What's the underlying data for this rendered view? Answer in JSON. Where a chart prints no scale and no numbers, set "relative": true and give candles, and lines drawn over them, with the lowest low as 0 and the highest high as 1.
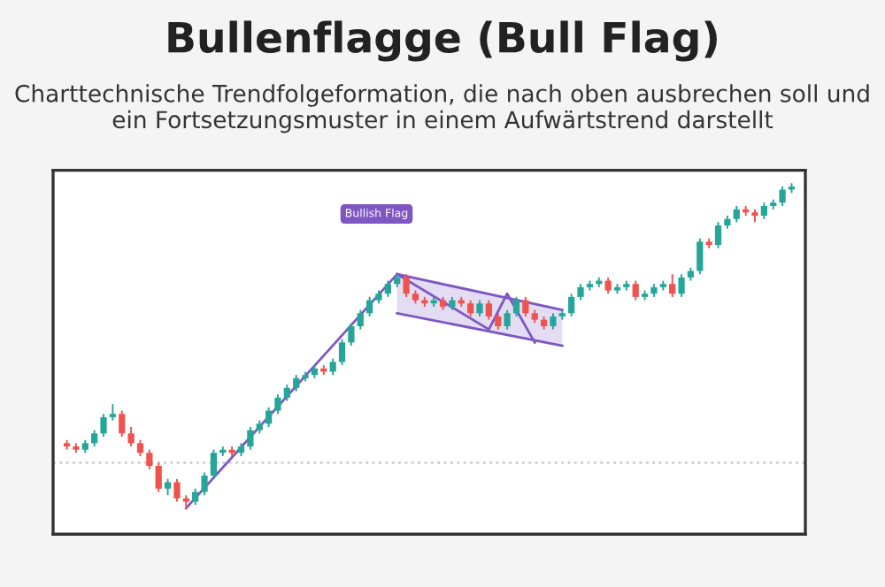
{
  "chart_data": {
    "type": "candlestick",
    "title": "Bullenflagge (Bull Flag)",
    "subtitle": "Charttechnische Trendfolgeformation, die nach oben ausbrechen soll und ein Fortsetzungsmuster in einem Aufwärtstrend darstellt",
    "relative": true,
    "categories": [
      null,
      null,
      null,
      null,
      null,
      null,
      null,
      null,
      null,
      null,
      null,
      null,
      null,
      null,
      null,
      null,
      null,
      null,
      null,
      null,
      null,
      null,
      null,
      null,
      null,
      null,
      null,
      null,
      null,
      null,
      null,
      null,
      null,
      null,
      null,
      null,
      null,
      null,
      null,
      null,
      null,
      null,
      null,
      null,
      null,
      null,
      null,
      null,
      null,
      null,
      null,
      null,
      null,
      null,
      null,
      null,
      null,
      null,
      null,
      null,
      null,
      null,
      null,
      null,
      null,
      null,
      null,
      null,
      null,
      null,
      null,
      null,
      null,
      null,
      null,
      null,
      null,
      null,
      null,
      null
    ],
    "ohlc": [
      [
        0.2,
        0.21,
        0.18,
        0.19
      ],
      [
        0.19,
        0.2,
        0.17,
        0.18
      ],
      [
        0.18,
        0.21,
        0.17,
        0.2
      ],
      [
        0.2,
        0.24,
        0.19,
        0.23
      ],
      [
        0.23,
        0.29,
        0.22,
        0.28
      ],
      [
        0.28,
        0.32,
        0.27,
        0.29
      ],
      [
        0.29,
        0.3,
        0.22,
        0.23
      ],
      [
        0.23,
        0.25,
        0.19,
        0.2
      ],
      [
        0.2,
        0.21,
        0.16,
        0.17
      ],
      [
        0.17,
        0.18,
        0.12,
        0.13
      ],
      [
        0.13,
        0.14,
        0.05,
        0.06
      ],
      [
        0.06,
        0.09,
        0.04,
        0.08
      ],
      [
        0.08,
        0.09,
        0.02,
        0.03
      ],
      [
        0.03,
        0.04,
        0.0,
        0.02
      ],
      [
        0.02,
        0.06,
        0.01,
        0.05
      ],
      [
        0.05,
        0.11,
        0.04,
        0.1
      ],
      [
        0.1,
        0.18,
        0.09,
        0.17
      ],
      [
        0.17,
        0.19,
        0.16,
        0.18
      ],
      [
        0.18,
        0.19,
        0.16,
        0.17
      ],
      [
        0.17,
        0.2,
        0.16,
        0.19
      ],
      [
        0.19,
        0.25,
        0.18,
        0.24
      ],
      [
        0.24,
        0.27,
        0.23,
        0.26
      ],
      [
        0.26,
        0.31,
        0.25,
        0.3
      ],
      [
        0.3,
        0.35,
        0.29,
        0.34
      ],
      [
        0.34,
        0.38,
        0.33,
        0.37
      ],
      [
        0.37,
        0.41,
        0.36,
        0.4
      ],
      [
        0.4,
        0.42,
        0.39,
        0.41
      ],
      [
        0.41,
        0.44,
        0.4,
        0.43
      ],
      [
        0.43,
        0.44,
        0.41,
        0.42
      ],
      [
        0.42,
        0.46,
        0.41,
        0.45
      ],
      [
        0.45,
        0.52,
        0.44,
        0.51
      ],
      [
        0.51,
        0.57,
        0.5,
        0.56
      ],
      [
        0.56,
        0.61,
        0.55,
        0.6
      ],
      [
        0.6,
        0.65,
        0.59,
        0.64
      ],
      [
        0.64,
        0.67,
        0.63,
        0.66
      ],
      [
        0.66,
        0.7,
        0.65,
        0.69
      ],
      [
        0.69,
        0.72,
        0.68,
        0.71
      ],
      [
        0.71,
        0.72,
        0.65,
        0.66
      ],
      [
        0.66,
        0.67,
        0.63,
        0.64
      ],
      [
        0.64,
        0.65,
        0.62,
        0.63
      ],
      [
        0.63,
        0.65,
        0.62,
        0.64
      ],
      [
        0.64,
        0.65,
        0.61,
        0.62
      ],
      [
        0.62,
        0.65,
        0.61,
        0.64
      ],
      [
        0.64,
        0.65,
        0.62,
        0.63
      ],
      [
        0.63,
        0.64,
        0.59,
        0.6
      ],
      [
        0.6,
        0.64,
        0.59,
        0.63
      ],
      [
        0.63,
        0.64,
        0.58,
        0.59
      ],
      [
        0.59,
        0.6,
        0.55,
        0.56
      ],
      [
        0.56,
        0.61,
        0.55,
        0.6
      ],
      [
        0.6,
        0.65,
        0.59,
        0.64
      ],
      [
        0.64,
        0.65,
        0.59,
        0.6
      ],
      [
        0.6,
        0.61,
        0.57,
        0.58
      ],
      [
        0.58,
        0.59,
        0.55,
        0.56
      ],
      [
        0.56,
        0.6,
        0.55,
        0.59
      ],
      [
        0.59,
        0.61,
        0.58,
        0.6
      ],
      [
        0.6,
        0.66,
        0.59,
        0.65
      ],
      [
        0.65,
        0.69,
        0.64,
        0.68
      ],
      [
        0.68,
        0.7,
        0.67,
        0.69
      ],
      [
        0.69,
        0.71,
        0.68,
        0.7
      ],
      [
        0.7,
        0.71,
        0.66,
        0.67
      ],
      [
        0.67,
        0.69,
        0.66,
        0.68
      ],
      [
        0.68,
        0.7,
        0.67,
        0.69
      ],
      [
        0.69,
        0.7,
        0.64,
        0.65
      ],
      [
        0.65,
        0.67,
        0.64,
        0.66
      ],
      [
        0.66,
        0.69,
        0.65,
        0.68
      ],
      [
        0.68,
        0.7,
        0.67,
        0.69
      ],
      [
        0.69,
        0.72,
        0.65,
        0.66
      ],
      [
        0.66,
        0.72,
        0.65,
        0.71
      ],
      [
        0.71,
        0.74,
        0.7,
        0.73
      ],
      [
        0.73,
        0.83,
        0.72,
        0.82
      ],
      [
        0.82,
        0.83,
        0.8,
        0.81
      ],
      [
        0.81,
        0.88,
        0.8,
        0.87
      ],
      [
        0.87,
        0.9,
        0.86,
        0.89
      ],
      [
        0.89,
        0.93,
        0.88,
        0.92
      ],
      [
        0.92,
        0.93,
        0.9,
        0.91
      ],
      [
        0.91,
        0.92,
        0.88,
        0.9
      ],
      [
        0.9,
        0.94,
        0.89,
        0.93
      ],
      [
        0.93,
        0.95,
        0.92,
        0.94
      ],
      [
        0.94,
        0.99,
        0.93,
        0.98
      ],
      [
        0.98,
        1.0,
        0.97,
        0.99
      ]
    ],
    "series": [
      {
        "type": "line",
        "color": "#7e57c2",
        "values": [
          null,
          null,
          null,
          null,
          null,
          null,
          null,
          null,
          null,
          null,
          null,
          null,
          null,
          0.0,
          null,
          null,
          null,
          null,
          null,
          null,
          null,
          null,
          null,
          null,
          null,
          null,
          null,
          null,
          null,
          null,
          null,
          null,
          null,
          null,
          null,
          null,
          0.72,
          null,
          null,
          null,
          null,
          null,
          null,
          null,
          null,
          null,
          null,
          null,
          null,
          null,
          null,
          null,
          null,
          null,
          null,
          null,
          null,
          null,
          null,
          null,
          null,
          null,
          null,
          null,
          null,
          null,
          null,
          null,
          null,
          null,
          null,
          null,
          null,
          null,
          null,
          null,
          null,
          null,
          null,
          null
        ]
      },
      {
        "type": "line",
        "color": "#7e57c2",
        "values": [
          null,
          null,
          null,
          null,
          null,
          null,
          null,
          null,
          null,
          null,
          null,
          null,
          null,
          null,
          null,
          null,
          null,
          null,
          null,
          null,
          null,
          null,
          null,
          null,
          null,
          null,
          null,
          null,
          null,
          null,
          null,
          null,
          null,
          null,
          null,
          null,
          0.72,
          null,
          null,
          null,
          null,
          null,
          null,
          null,
          null,
          null,
          null,
          null,
          null,
          null,
          null,
          null,
          null,
          null,
          0.61,
          null,
          null,
          null,
          null,
          null,
          null,
          null,
          null,
          null,
          null,
          null,
          null,
          null,
          null,
          null,
          null,
          null,
          null,
          null,
          null,
          null,
          null,
          null,
          null,
          null
        ],
        "lower": [
          null,
          null,
          null,
          null,
          null,
          null,
          null,
          null,
          null,
          null,
          null,
          null,
          null,
          null,
          null,
          null,
          null,
          null,
          null,
          null,
          null,
          null,
          null,
          null,
          null,
          null,
          null,
          null,
          null,
          null,
          null,
          null,
          null,
          null,
          null,
          null,
          0.6,
          null,
          null,
          null,
          null,
          null,
          null,
          null,
          null,
          null,
          null,
          null,
          null,
          null,
          null,
          null,
          null,
          null,
          0.5,
          null,
          null,
          null,
          null,
          null,
          null,
          null,
          null,
          null,
          null,
          null,
          null,
          null,
          null,
          null,
          null,
          null,
          null,
          null,
          null,
          null,
          null,
          null,
          null,
          null
        ],
        "upper": [
          null,
          null,
          null,
          null,
          null,
          null,
          null,
          null,
          null,
          null,
          null,
          null,
          null,
          null,
          null,
          null,
          null,
          null,
          null,
          null,
          null,
          null,
          null,
          null,
          null,
          null,
          null,
          null,
          null,
          null,
          null,
          null,
          null,
          null,
          null,
          null,
          0.72,
          null,
          null,
          null,
          null,
          null,
          null,
          null,
          null,
          null,
          null,
          null,
          null,
          null,
          null,
          null,
          null,
          null,
          0.61,
          null,
          null,
          null,
          null,
          null,
          null,
          null,
          null,
          null,
          null,
          null,
          null,
          null,
          null,
          null,
          null,
          null,
          null,
          null,
          null,
          null,
          null,
          null,
          null,
          null
        ]
      },
      {
        "type": "line",
        "color": "#7e57c2",
        "values": [
          null,
          null,
          null,
          null,
          null,
          null,
          null,
          null,
          null,
          null,
          null,
          null,
          null,
          null,
          null,
          null,
          null,
          null,
          null,
          null,
          null,
          null,
          null,
          null,
          null,
          null,
          null,
          null,
          null,
          null,
          null,
          null,
          null,
          null,
          null,
          null,
          0.6,
          null,
          null,
          null,
          null,
          null,
          null,
          null,
          null,
          null,
          null,
          null,
          null,
          null,
          null,
          null,
          null,
          null,
          0.5,
          null,
          null,
          null,
          null,
          null,
          null,
          null,
          null,
          null,
          null,
          null,
          null,
          null,
          null,
          null,
          null,
          null,
          null,
          null,
          null,
          null,
          null,
          null,
          null,
          null
        ]
      },
      {
        "type": "line",
        "color": "#7e57c2",
        "values": [
          null,
          null,
          null,
          null,
          null,
          null,
          null,
          null,
          null,
          null,
          null,
          null,
          null,
          null,
          null,
          null,
          null,
          null,
          null,
          null,
          null,
          null,
          null,
          null,
          null,
          null,
          null,
          null,
          null,
          null,
          null,
          null,
          null,
          null,
          null,
          null,
          0.72,
          null,
          null,
          null,
          null,
          null,
          null,
          null,
          null,
          null,
          0.55,
          null,
          0.66,
          null,
          null,
          0.51,
          null,
          null,
          null,
          null,
          null,
          null,
          null,
          null,
          null,
          null,
          null,
          null,
          null,
          null,
          null,
          null,
          null,
          null,
          null,
          null,
          null,
          null,
          null,
          null,
          null,
          null,
          null,
          null
        ]
      }
    ],
    "ref_lines": [
      {
        "axis": "y",
        "value": 0.14,
        "color": "#cccccc",
        "line_style": "dotted"
      }
    ],
    "annotations": [
      "Bullish Flag"
    ]
  }
}
